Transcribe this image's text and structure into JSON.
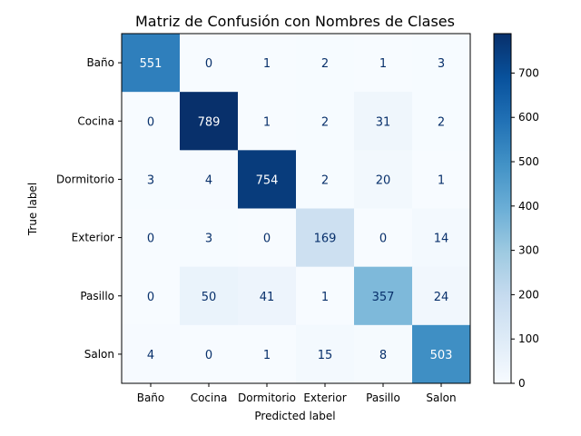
{
  "chart_data": {
    "type": "heatmap",
    "title": "Matriz de Confusión con Nombres de Clases",
    "xlabel": "Predicted label",
    "ylabel": "True label",
    "x_categories": [
      "Baño",
      "Cocina",
      "Dormitorio",
      "Exterior",
      "Pasillo",
      "Salon"
    ],
    "y_categories": [
      "Baño",
      "Cocina",
      "Dormitorio",
      "Exterior",
      "Pasillo",
      "Salon"
    ],
    "matrix": [
      [
        551,
        0,
        1,
        2,
        1,
        3
      ],
      [
        0,
        789,
        1,
        2,
        31,
        2
      ],
      [
        3,
        4,
        754,
        2,
        20,
        1
      ],
      [
        0,
        3,
        0,
        169,
        0,
        14
      ],
      [
        0,
        50,
        41,
        1,
        357,
        24
      ],
      [
        4,
        0,
        1,
        15,
        8,
        503
      ]
    ],
    "colormap": "Blues",
    "colorbar": {
      "range": [
        0,
        789
      ],
      "ticks": [
        0,
        100,
        200,
        300,
        400,
        500,
        600,
        700
      ]
    }
  }
}
